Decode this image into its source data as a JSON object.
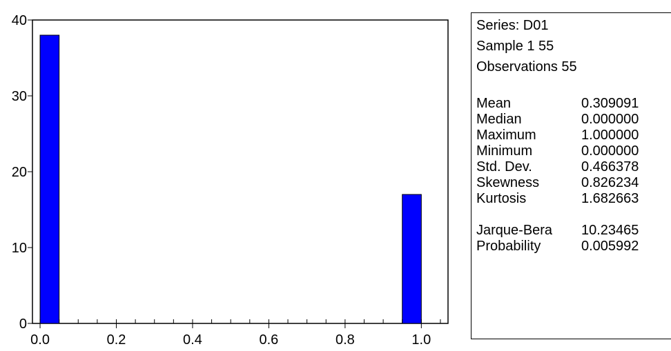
{
  "chart_data": {
    "type": "bar",
    "title": "",
    "xlabel": "",
    "ylabel": "",
    "bins": [
      {
        "x0": 0.0,
        "x1": 0.05,
        "count": 38
      },
      {
        "x0": 0.95,
        "x1": 1.0,
        "count": 17
      }
    ],
    "xlim": [
      -0.02,
      1.07
    ],
    "ylim": [
      0,
      40
    ],
    "x_ticks": [
      "0.0",
      "0.2",
      "0.4",
      "0.6",
      "0.8",
      "1.0"
    ],
    "y_ticks": [
      "0",
      "10",
      "20",
      "30",
      "40"
    ],
    "bar_color": "#0000ff",
    "grid": false
  },
  "stats": {
    "series": "Series: D01",
    "sample": "Sample 1 55",
    "observations": "Observations 55",
    "rows": [
      {
        "label": "Mean",
        "value": "0.309091"
      },
      {
        "label": "Median",
        "value": "0.000000"
      },
      {
        "label": "Maximum",
        "value": "1.000000"
      },
      {
        "label": "Minimum",
        "value": "0.000000"
      },
      {
        "label": "Std. Dev.",
        "value": "0.466378"
      },
      {
        "label": "Skewness",
        "value": "0.826234"
      },
      {
        "label": "Kurtosis",
        "value": "1.682663"
      }
    ],
    "tests": [
      {
        "label": "Jarque-Bera",
        "value": "10.23465"
      },
      {
        "label": "Probability",
        "value": "0.005992"
      }
    ]
  }
}
